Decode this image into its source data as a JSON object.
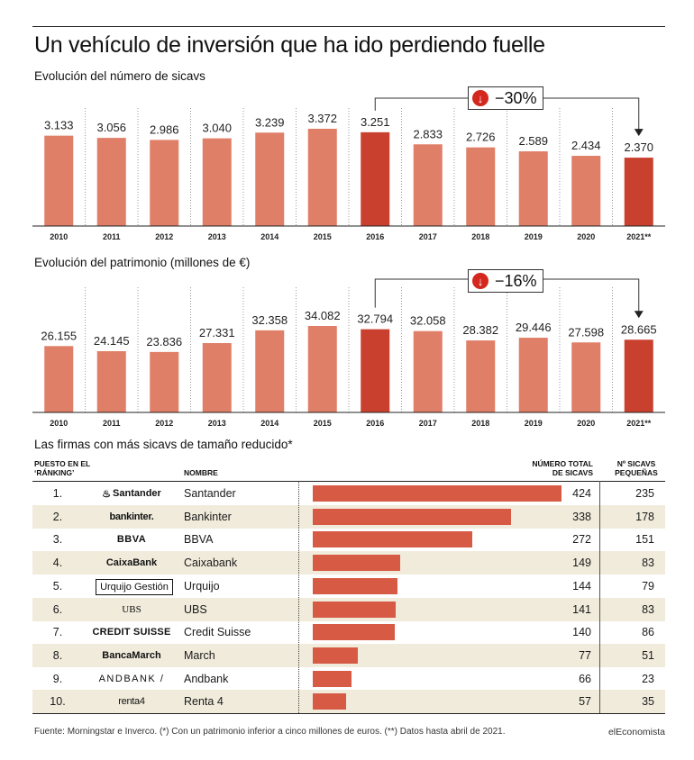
{
  "title": "Un vehículo de inversión que ha ido perdiendo fuelle",
  "colors": {
    "bar": "#e07f67",
    "highlight": "#c9402f",
    "table_bar": "#d75a45",
    "badge": "#d4281e",
    "shade": "#f0ebdb"
  },
  "chart_data": [
    {
      "type": "bar",
      "title": "Evolución del número de sicavs",
      "categories": [
        "2010",
        "2011",
        "2012",
        "2013",
        "2014",
        "2015",
        "2016",
        "2017",
        "2018",
        "2019",
        "2020",
        "2021**"
      ],
      "value_labels": [
        "3.133",
        "3.056",
        "2.986",
        "3.040",
        "3.239",
        "3.372",
        "3.251",
        "2.833",
        "2.726",
        "2.589",
        "2.434",
        "2.370"
      ],
      "values": [
        3133,
        3056,
        2986,
        3040,
        3239,
        3372,
        3251,
        2833,
        2726,
        2589,
        2434,
        2370
      ],
      "highlight": [
        "2016",
        "2021**"
      ],
      "annotation": "−30%",
      "grid": true
    },
    {
      "type": "bar",
      "title": "Evolución del patrimonio (millones de €)",
      "categories": [
        "2010",
        "2011",
        "2012",
        "2013",
        "2014",
        "2015",
        "2016",
        "2017",
        "2018",
        "2019",
        "2020",
        "2021**"
      ],
      "value_labels": [
        "26.155",
        "24.145",
        "23.836",
        "27.331",
        "32.358",
        "34.082",
        "32.794",
        "32.058",
        "28.382",
        "29.446",
        "27.598",
        "28.665"
      ],
      "values": [
        26155,
        24145,
        23836,
        27331,
        32358,
        34082,
        32794,
        32058,
        28382,
        29446,
        27598,
        28665
      ],
      "highlight": [
        "2016",
        "2021**"
      ],
      "annotation": "−16%",
      "grid": true
    },
    {
      "type": "table",
      "title": "Las firmas con más sicavs de tamaño reducido*",
      "headers": {
        "rank": "PUESTO EN EL ‘RÁNKING’",
        "name": "NOMBRE",
        "total": "NÚMERO TOTAL DE SICAVS",
        "small": "Nº SICAVS PEQUEÑAS"
      },
      "rows": [
        {
          "rank": "1.",
          "logo": "Santander",
          "name": "Santander",
          "total": 424,
          "small": 235
        },
        {
          "rank": "2.",
          "logo": "bankinter.",
          "name": "Bankinter",
          "total": 338,
          "small": 178
        },
        {
          "rank": "3.",
          "logo": "BBVA",
          "name": "BBVA",
          "total": 272,
          "small": 151
        },
        {
          "rank": "4.",
          "logo": "CaixaBank",
          "name": "Caixabank",
          "total": 149,
          "small": 83
        },
        {
          "rank": "5.",
          "logo": "Urquijo Gestión",
          "name": "Urquijo",
          "total": 144,
          "small": 79
        },
        {
          "rank": "6.",
          "logo": "UBS",
          "name": "UBS",
          "total": 141,
          "small": 83
        },
        {
          "rank": "7.",
          "logo": "CREDIT SUISSE",
          "name": "Credit Suisse",
          "total": 140,
          "small": 86
        },
        {
          "rank": "8.",
          "logo": "BancaMarch",
          "name": "March",
          "total": 77,
          "small": 51
        },
        {
          "rank": "9.",
          "logo": "ANDBANK /",
          "name": "Andbank",
          "total": 66,
          "small": 23
        },
        {
          "rank": "10.",
          "logo": "renta4",
          "name": "Renta 4",
          "total": 57,
          "small": 35
        }
      ]
    }
  ],
  "footer": "Fuente: Morningstar e Inverco. (*) Con un patrimonio inferior a cinco millones de euros. (**) Datos hasta abril de 2021.",
  "brand": "elEconomista"
}
